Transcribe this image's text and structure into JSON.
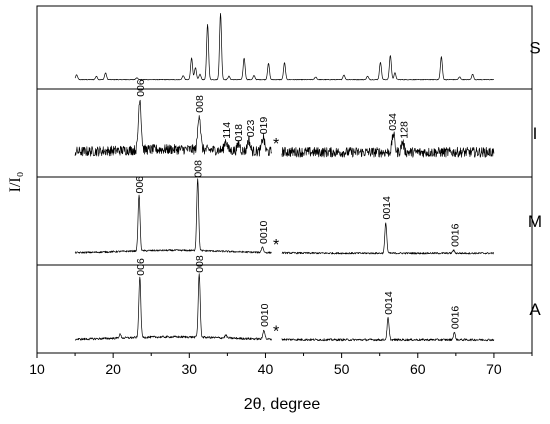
{
  "chart_data": {
    "type": "line",
    "xlabel": "2θ, degree",
    "ylabel": "I/I₀",
    "xlim": [
      10,
      75
    ],
    "x_ticks": [
      10,
      20,
      30,
      40,
      50,
      60,
      70
    ],
    "x_tick_labels": [
      "10",
      "20",
      "30",
      "40",
      "50",
      "60",
      "70"
    ],
    "grid": false,
    "legend": "none",
    "panels": [
      {
        "label": "S",
        "baseline": 0.05,
        "noise": 0.005,
        "peaks": [
          {
            "x": 15.2,
            "h": 0.07
          },
          {
            "x": 17.8,
            "h": 0.05
          },
          {
            "x": 19.0,
            "h": 0.1
          },
          {
            "x": 23.1,
            "h": 0.03
          },
          {
            "x": 29.2,
            "h": 0.06
          },
          {
            "x": 30.3,
            "h": 0.32
          },
          {
            "x": 30.8,
            "h": 0.18
          },
          {
            "x": 31.4,
            "h": 0.08
          },
          {
            "x": 32.4,
            "h": 0.82
          },
          {
            "x": 34.1,
            "h": 0.98
          },
          {
            "x": 35.2,
            "h": 0.05
          },
          {
            "x": 37.2,
            "h": 0.32
          },
          {
            "x": 38.5,
            "h": 0.06
          },
          {
            "x": 40.4,
            "h": 0.24
          },
          {
            "x": 42.5,
            "h": 0.25
          },
          {
            "x": 46.6,
            "h": 0.04
          },
          {
            "x": 50.3,
            "h": 0.07
          },
          {
            "x": 53.4,
            "h": 0.05
          },
          {
            "x": 55.1,
            "h": 0.26
          },
          {
            "x": 56.4,
            "h": 0.36
          },
          {
            "x": 57.0,
            "h": 0.1
          },
          {
            "x": 63.1,
            "h": 0.34
          },
          {
            "x": 65.5,
            "h": 0.04
          },
          {
            "x": 67.2,
            "h": 0.08
          }
        ],
        "peak_labels": []
      },
      {
        "label": "I",
        "baseline": 0.26,
        "noise": 0.07,
        "peaks": [
          {
            "x": 23.5,
            "h": 0.72
          },
          {
            "x": 31.3,
            "h": 0.5
          },
          {
            "x": 34.8,
            "h": 0.14
          },
          {
            "x": 36.5,
            "h": 0.1
          },
          {
            "x": 37.8,
            "h": 0.16
          },
          {
            "x": 39.7,
            "h": 0.2
          },
          {
            "x": 56.8,
            "h": 0.25
          },
          {
            "x": 58.0,
            "h": 0.14
          }
        ],
        "peak_labels": [
          {
            "x": 23.5,
            "text": "006"
          },
          {
            "x": 31.3,
            "text": "008"
          },
          {
            "x": 34.8,
            "text": "114"
          },
          {
            "x": 36.4,
            "text": "018"
          },
          {
            "x": 38.0,
            "text": "023"
          },
          {
            "x": 39.7,
            "text": "019"
          },
          {
            "x": 56.6,
            "text": "034"
          },
          {
            "x": 58.1,
            "text": "128"
          }
        ]
      },
      {
        "label": "M",
        "baseline": 0.08,
        "noise": 0.012,
        "peaks": [
          {
            "x": 23.4,
            "h": 0.78
          },
          {
            "x": 31.1,
            "h": 1.0
          },
          {
            "x": 39.6,
            "h": 0.08
          },
          {
            "x": 55.8,
            "h": 0.42
          },
          {
            "x": 64.7,
            "h": 0.04
          }
        ],
        "peak_labels": [
          {
            "x": 23.4,
            "text": "006"
          },
          {
            "x": 31.1,
            "text": "008"
          },
          {
            "x": 39.7,
            "text": "0010"
          },
          {
            "x": 55.8,
            "text": "0014"
          },
          {
            "x": 64.8,
            "text": "0016"
          }
        ]
      },
      {
        "label": "A",
        "baseline": 0.1,
        "noise": 0.015,
        "peaks": [
          {
            "x": 20.9,
            "h": 0.05
          },
          {
            "x": 23.5,
            "h": 0.84
          },
          {
            "x": 31.3,
            "h": 0.88
          },
          {
            "x": 34.8,
            "h": 0.04
          },
          {
            "x": 39.8,
            "h": 0.13
          },
          {
            "x": 56.1,
            "h": 0.3
          },
          {
            "x": 64.8,
            "h": 0.1
          }
        ],
        "peak_labels": [
          {
            "x": 23.5,
            "text": "006"
          },
          {
            "x": 31.3,
            "text": "008"
          },
          {
            "x": 39.8,
            "text": "0010"
          },
          {
            "x": 56.1,
            "text": "0014"
          },
          {
            "x": 64.8,
            "text": "0016"
          }
        ]
      }
    ],
    "gap_marker": {
      "text": "*",
      "x": 41.4
    },
    "data_range": [
      15,
      70
    ]
  }
}
